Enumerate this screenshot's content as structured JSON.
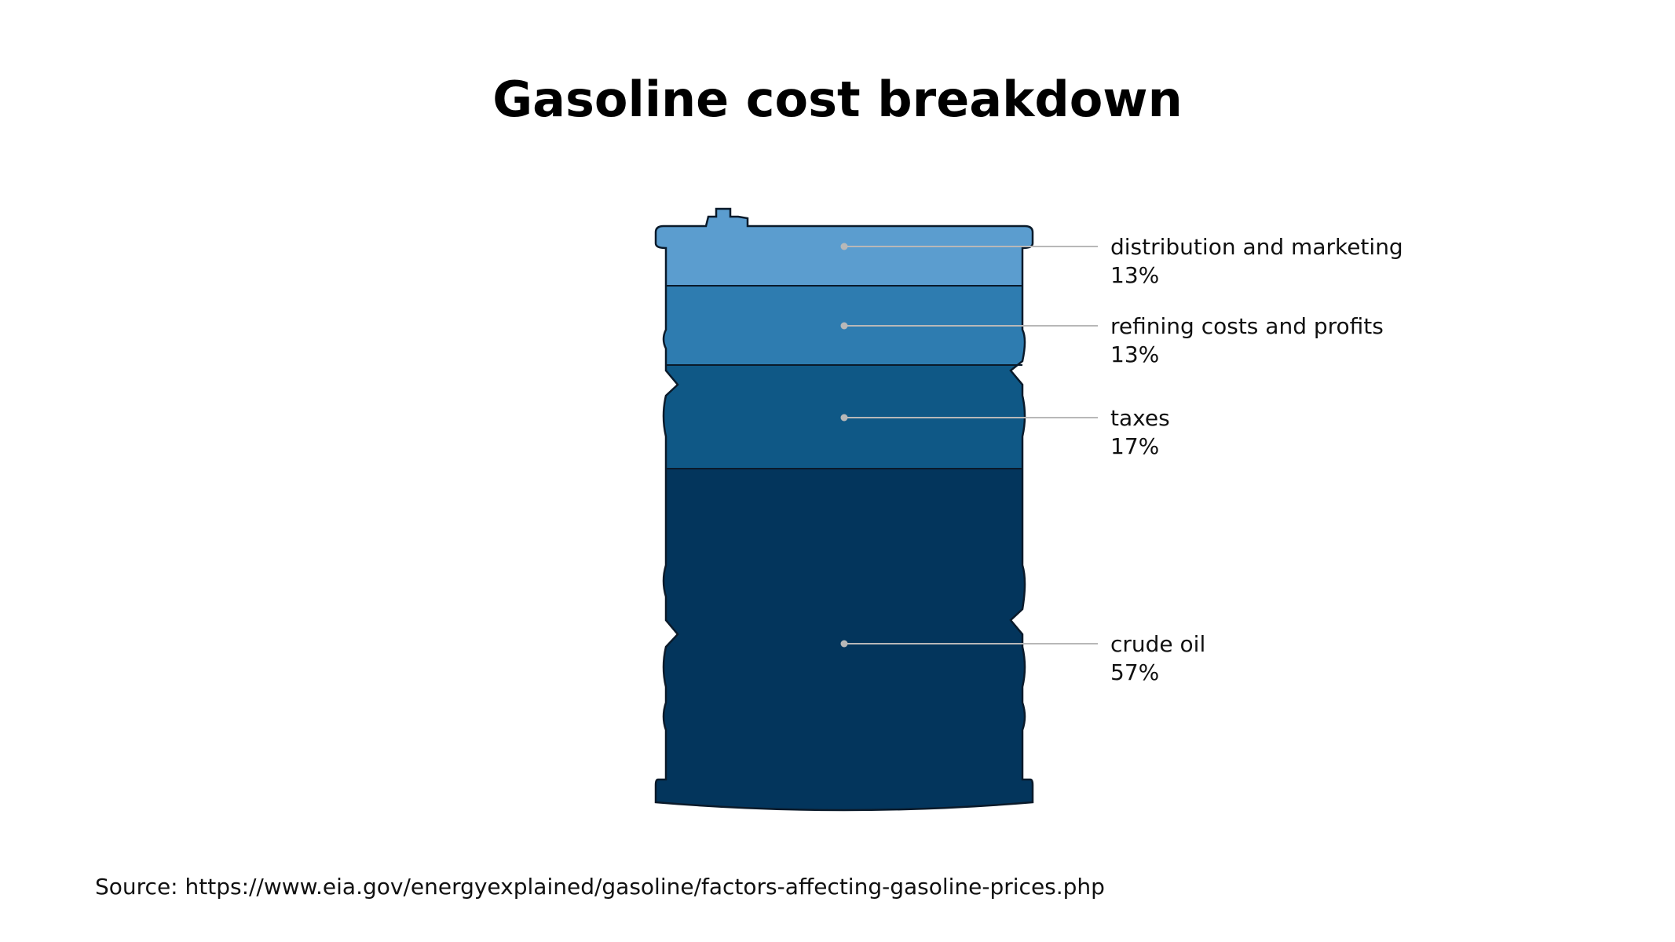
{
  "title": "Gasoline cost breakdown",
  "source": "Source: https://www.eia.gov/energyexplained/gasoline/factors-affecting-gasoline-prices.php",
  "chart_data": {
    "type": "pie",
    "title": "Gasoline cost breakdown",
    "shape": "oil-barrel",
    "unit": "%",
    "categories": [
      "distribution and marketing",
      "refining costs and profits",
      "taxes",
      "crude oil"
    ],
    "values": [
      13,
      13,
      17,
      57
    ],
    "labels": [
      "13%",
      "13%",
      "17%",
      "57%"
    ],
    "colors": [
      "#5b9dcf",
      "#2e7cb0",
      "#0f5886",
      "#03355c"
    ],
    "outline_color": "#0a1a2a",
    "leader_color": "#b8b8b8"
  }
}
